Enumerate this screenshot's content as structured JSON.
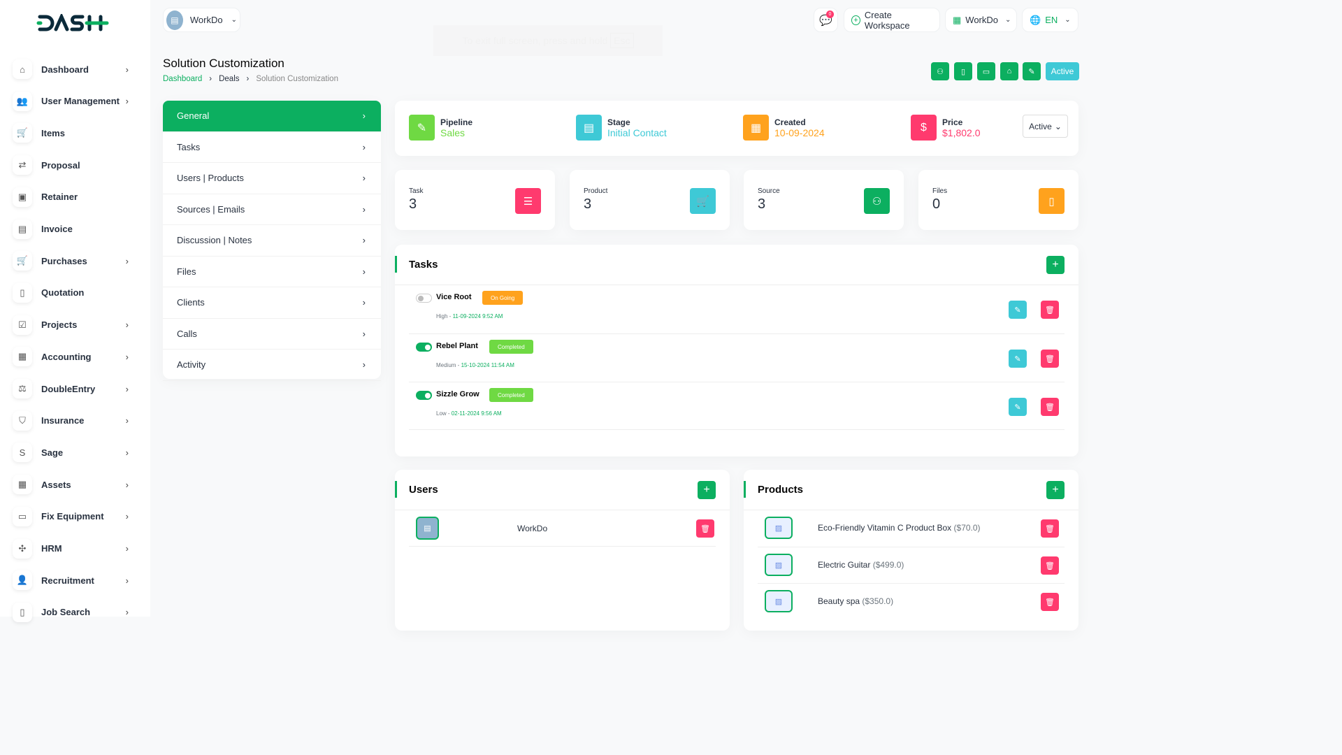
{
  "brand": {
    "logo": "DASH"
  },
  "sidebar": {
    "items": [
      {
        "label": "Dashboard",
        "icon": "home-icon",
        "chevron": true
      },
      {
        "label": "User Management",
        "icon": "users-icon",
        "chevron": true
      },
      {
        "label": "Items",
        "icon": "cart-icon",
        "chevron": false
      },
      {
        "label": "Proposal",
        "icon": "proposal-icon",
        "chevron": false
      },
      {
        "label": "Retainer",
        "icon": "retainer-icon",
        "chevron": false
      },
      {
        "label": "Invoice",
        "icon": "invoice-icon",
        "chevron": false
      },
      {
        "label": "Purchases",
        "icon": "cart-icon",
        "chevron": true
      },
      {
        "label": "Quotation",
        "icon": "quotation-icon",
        "chevron": false
      },
      {
        "label": "Projects",
        "icon": "projects-icon",
        "chevron": true
      },
      {
        "label": "Accounting",
        "icon": "accounting-icon",
        "chevron": true
      },
      {
        "label": "DoubleEntry",
        "icon": "scale-icon",
        "chevron": true
      },
      {
        "label": "Insurance",
        "icon": "shield-icon",
        "chevron": true
      },
      {
        "label": "Sage",
        "icon": "sage-icon",
        "chevron": true
      },
      {
        "label": "Assets",
        "icon": "calculator-icon",
        "chevron": true
      },
      {
        "label": "Fix Equipment",
        "icon": "archive-icon",
        "chevron": true
      },
      {
        "label": "HRM",
        "icon": "hrm-icon",
        "chevron": true
      },
      {
        "label": "Recruitment",
        "icon": "user-plus-icon",
        "chevron": true
      },
      {
        "label": "Job Search",
        "icon": "file-search-icon",
        "chevron": true
      }
    ]
  },
  "header": {
    "workspace": "WorkDo",
    "notification_count": "0",
    "create_workspace": "Create Workspace",
    "workspace_switch": "WorkDo",
    "language": "EN",
    "fullscreen_toast": "To exit full screen, press and hold",
    "fullscreen_key": "Esc"
  },
  "page": {
    "title": "Solution Customization",
    "breadcrumb": [
      "Dashboard",
      "Deals",
      "Solution Customization"
    ],
    "status_button": "Active"
  },
  "deal_menu": [
    "General",
    "Tasks",
    "Users | Products",
    "Sources | Emails",
    "Discussion | Notes",
    "Files",
    "Clients",
    "Calls",
    "Activity"
  ],
  "info": {
    "pipeline": {
      "label": "Pipeline",
      "value": "Sales",
      "color": "#6fd943"
    },
    "stage": {
      "label": "Stage",
      "value": "Initial Contact",
      "color": "#3ec9d6"
    },
    "created": {
      "label": "Created",
      "value": "10-09-2024",
      "color": "#ffa21d"
    },
    "price": {
      "label": "Price",
      "value": "$1,802.0",
      "color": "#ff3a6e"
    },
    "status_select": "Active"
  },
  "stats": [
    {
      "label": "Task",
      "value": "3",
      "color": "#ff3a6e",
      "icon": "tasks-icon"
    },
    {
      "label": "Product",
      "value": "3",
      "color": "#3ec9d6",
      "icon": "cart-icon"
    },
    {
      "label": "Source",
      "value": "3",
      "color": "#0caf60",
      "icon": "source-icon"
    },
    {
      "label": "Files",
      "value": "0",
      "color": "#ffa21d",
      "icon": "file-icon"
    }
  ],
  "tasks": {
    "title": "Tasks",
    "items": [
      {
        "name": "Vice Root",
        "status": "On Going",
        "status_color": "#ffa21d",
        "priority": "High",
        "date": "11-09-2024 9:52 AM",
        "done": false
      },
      {
        "name": "Rebel Plant",
        "status": "Completed",
        "status_color": "#6fd943",
        "priority": "Medium",
        "date": "15-10-2024 11:54 AM",
        "done": true
      },
      {
        "name": "Sizzle Grow",
        "status": "Completed",
        "status_color": "#6fd943",
        "priority": "Low",
        "date": "02-11-2024 9:56 AM",
        "done": true
      }
    ]
  },
  "users": {
    "title": "Users",
    "items": [
      {
        "name": "WorkDo"
      }
    ]
  },
  "products": {
    "title": "Products",
    "items": [
      {
        "name": "Eco-Friendly Vitamin C Product Box",
        "price": "($70.0)"
      },
      {
        "name": "Electric Guitar",
        "price": "($499.0)"
      },
      {
        "name": "Beauty spa",
        "price": "($350.0)"
      }
    ]
  },
  "colors": {
    "primary": "#0caf60",
    "danger": "#ff3a6e",
    "info": "#3ec9d6",
    "warning": "#ffa21d"
  }
}
